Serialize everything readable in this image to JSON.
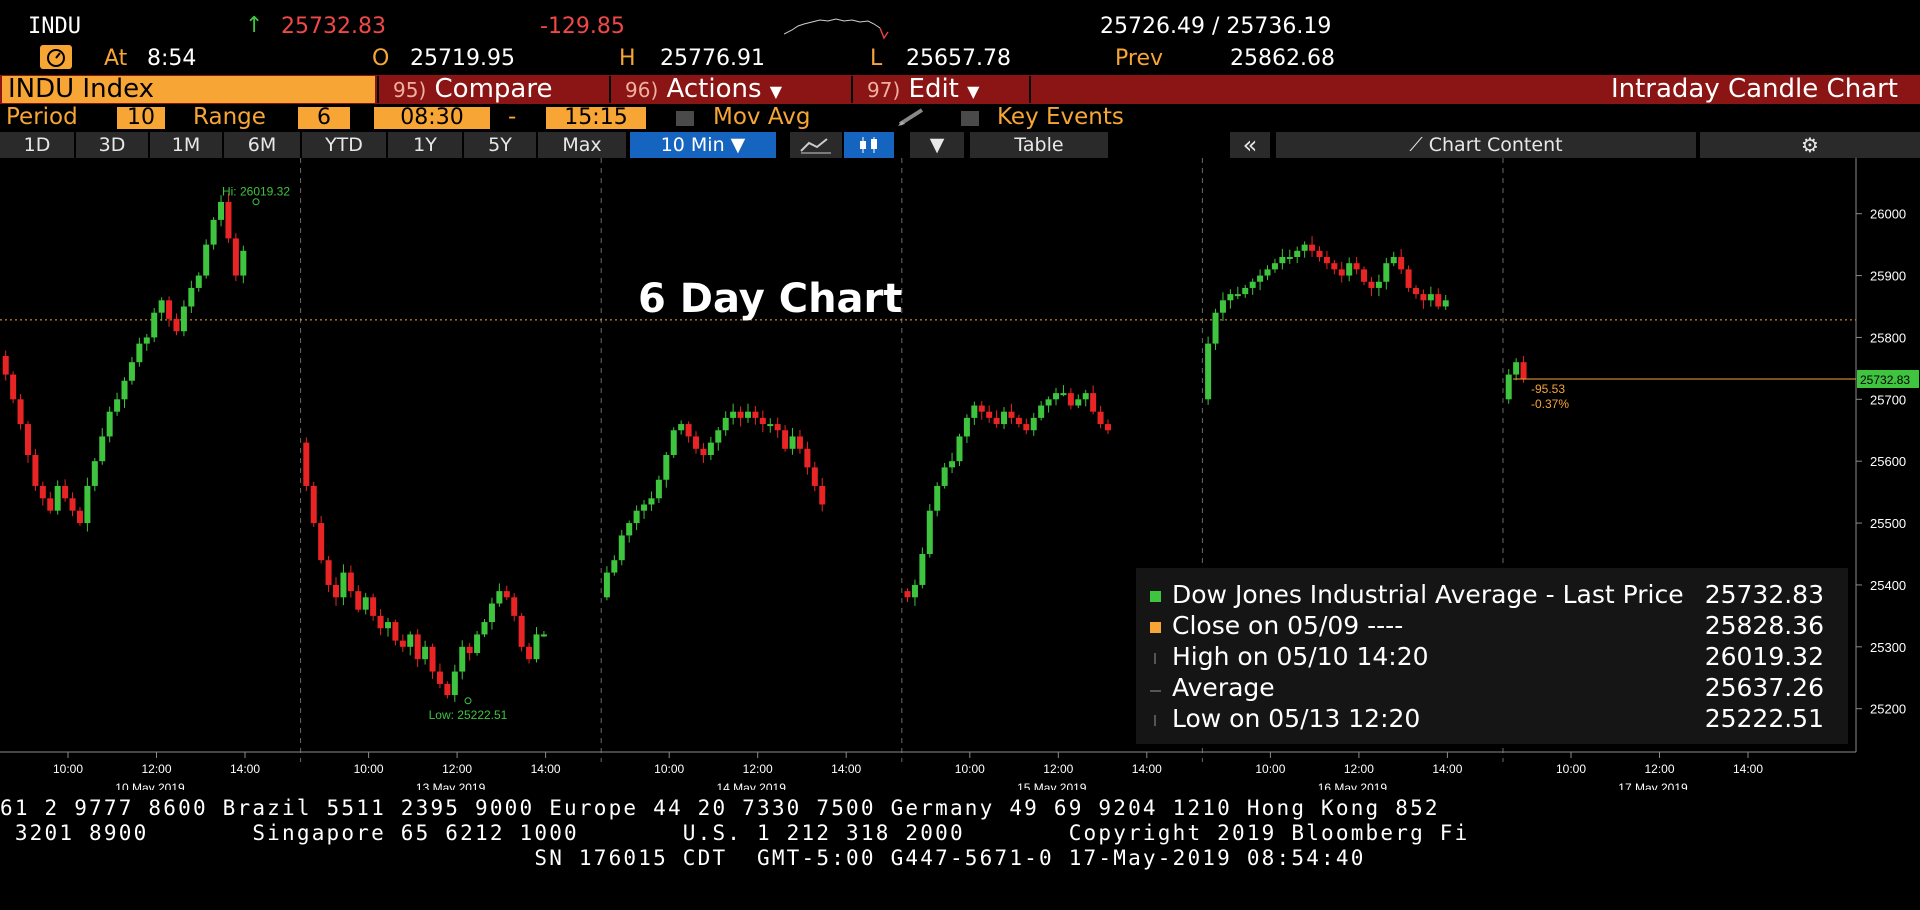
{
  "header": {
    "symbol": "INDU",
    "last": "25732.83",
    "change": "-129.85",
    "bid_ask": "25726.49 / 25736.19",
    "at_label": "At",
    "time": "8:54",
    "open_label": "O",
    "open": "25719.95",
    "high_label": "H",
    "high": "25776.91",
    "low_label": "L",
    "low": "25657.78",
    "prev_label": "Prev",
    "prev": "25862.68"
  },
  "toolbar": {
    "ticker": "INDU Index",
    "compare_num": "95)",
    "compare": "Compare",
    "actions_num": "96)",
    "actions": "Actions",
    "edit_num": "97)",
    "edit": "Edit",
    "title": "Intraday Candle Chart"
  },
  "settings": {
    "period_label": "Period",
    "period": "10",
    "range_label": "Range",
    "range": "6",
    "start": "08:30",
    "dash": "-",
    "end": "15:15",
    "mov_avg": "Mov Avg",
    "key_events": "Key Events"
  },
  "ranges": [
    "1D",
    "3D",
    "1M",
    "6M",
    "YTD",
    "1Y",
    "5Y",
    "Max"
  ],
  "interval": "10 Min",
  "table_label": "Table",
  "chart_content_label": "Chart Content",
  "chart_data": {
    "type": "candlestick",
    "title": "6 Day Chart",
    "ylim": [
      25130,
      26090
    ],
    "y_ticks": [
      25200,
      25300,
      25400,
      25500,
      25600,
      25700,
      25800,
      25900,
      26000
    ],
    "days": [
      {
        "date": "10 May 2019",
        "ticks": [
          "10:00",
          "12:00",
          "14:00"
        ]
      },
      {
        "date": "13 May 2019",
        "ticks": [
          "10:00",
          "12:00",
          "14:00"
        ]
      },
      {
        "date": "14 May 2019",
        "ticks": [
          "10:00",
          "12:00",
          "14:00"
        ]
      },
      {
        "date": "15 May 2019",
        "ticks": [
          "10:00",
          "12:00",
          "14:00"
        ]
      },
      {
        "date": "16 May 2019",
        "ticks": [
          "10:00",
          "12:00",
          "14:00"
        ]
      },
      {
        "date": "17 May 2019",
        "ticks": [
          "10:00",
          "12:00",
          "14:00"
        ]
      }
    ],
    "day_paths": [
      [
        25770,
        25740,
        25700,
        25660,
        25610,
        25560,
        25540,
        25520,
        25560,
        25540,
        25520,
        25500,
        25560,
        25600,
        25640,
        25680,
        25700,
        25730,
        25760,
        25790,
        25800,
        25840,
        25860,
        25830,
        25810,
        25850,
        25880,
        25900,
        25950,
        25990,
        26019,
        25960,
        25900,
        25940
      ],
      [
        25630,
        25560,
        25500,
        25440,
        25400,
        25380,
        25420,
        25390,
        25360,
        25380,
        25350,
        25330,
        25340,
        25310,
        25300,
        25320,
        25280,
        25300,
        25260,
        25240,
        25222,
        25260,
        25300,
        25290,
        25320,
        25340,
        25370,
        25390,
        25380,
        25350,
        25300,
        25280,
        25320,
        25320
      ],
      [
        25380,
        25420,
        25440,
        25480,
        25500,
        25520,
        25530,
        25540,
        25570,
        25610,
        25650,
        25660,
        25640,
        25620,
        25610,
        25630,
        25650,
        25670,
        25680,
        25670,
        25680,
        25670,
        25660,
        25660,
        25650,
        25620,
        25640,
        25620,
        25590,
        25560,
        25530
      ],
      [
        25390,
        25380,
        25400,
        25450,
        25520,
        25560,
        25590,
        25600,
        25640,
        25670,
        25690,
        25680,
        25670,
        25660,
        25680,
        25670,
        25660,
        25650,
        25670,
        25690,
        25700,
        25710,
        25710,
        25690,
        25700,
        25710,
        25680,
        25660,
        25650
      ],
      [
        25700,
        25790,
        25840,
        25860,
        25870,
        25870,
        25880,
        25890,
        25900,
        25910,
        25920,
        25930,
        25930,
        25940,
        25950,
        25940,
        25930,
        25920,
        25910,
        25900,
        25920,
        25910,
        25890,
        25880,
        25890,
        25920,
        25930,
        25910,
        25880,
        25870,
        25860,
        25870,
        25850,
        25860
      ],
      [
        25700,
        25740,
        25760,
        25732.83
      ]
    ],
    "prev_close": 25828.36,
    "last_price": 25732.83,
    "last_price_label": "25732.83",
    "hi_label": "Hi: 26019.32",
    "low_label": "Low: 25222.51",
    "change_label": "-95.53",
    "change_pct_label": "-0.37%",
    "legend": [
      {
        "name": "Dow Jones Industrial Average - Last Price",
        "value": "25732.83",
        "color": "#3ec43e"
      },
      {
        "name": "Close on 05/09 ----",
        "value": "25828.36",
        "color": "#f7a535"
      },
      {
        "name": "High on 05/10 14:20",
        "value": "26019.32",
        "color": "#888888"
      },
      {
        "name": "Average",
        "value": "25637.26",
        "color": "#888888"
      },
      {
        "name": "Low on 05/13 12:20",
        "value": "25222.51",
        "color": "#888888"
      }
    ]
  },
  "footer": {
    "line1": "61 2 9777 8600 Brazil 5511 2395 9000 Europe 44 20 7330 7500 Germany 49 69 9204 1210 Hong Kong 852",
    "line2": " 3201 8900       Singapore 65 6212 1000       U.S. 1 212 318 2000       Copyright 2019 Bloomberg Fi",
    "line3": "                                    SN 176015 CDT  GMT-5:00 G447-5671-0 17-May-2019 08:54:40"
  }
}
